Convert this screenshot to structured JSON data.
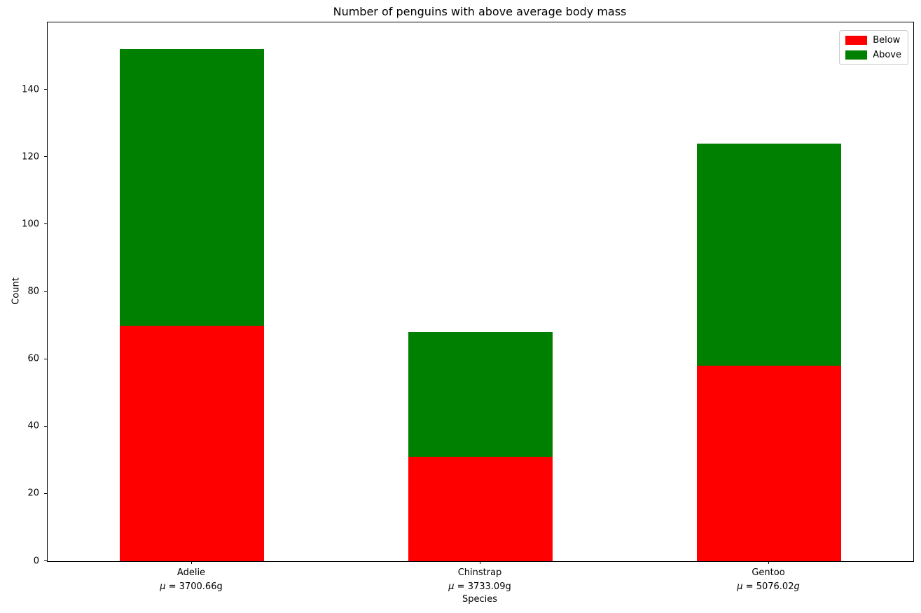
{
  "title": "Number of penguins with above average body mass",
  "chart_data": {
    "type": "bar",
    "stacked": true,
    "title": "Number of penguins with above average body mass",
    "xlabel": "Species",
    "ylabel": "Count",
    "categories": [
      "Adelie",
      "Chinstrap",
      "Gentoo"
    ],
    "category_sublabels": [
      "μ = 3700.66g",
      "μ = 3733.09g",
      "μ = 5076.02g"
    ],
    "category_sublabel_italic_g": [
      false,
      false,
      true
    ],
    "series": [
      {
        "name": "Below",
        "color": "#ff0000",
        "values": [
          70,
          31,
          58
        ]
      },
      {
        "name": "Above",
        "color": "#008000",
        "values": [
          82,
          37,
          66
        ]
      }
    ],
    "totals": [
      152,
      68,
      124
    ],
    "ylim": [
      0,
      160
    ],
    "yticks": [
      0,
      20,
      40,
      60,
      80,
      100,
      120,
      140
    ],
    "bar_width_fraction": 0.1667,
    "legend_position": "upper right",
    "grid": false
  }
}
